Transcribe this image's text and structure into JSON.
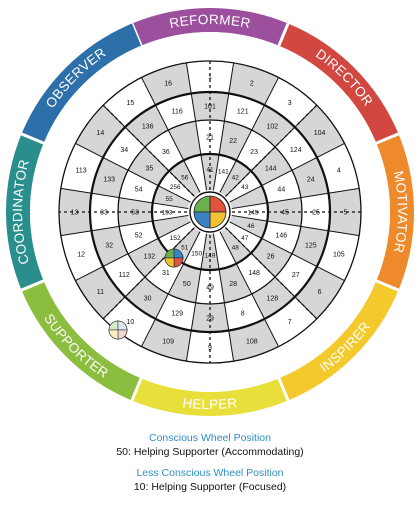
{
  "colors": {
    "reformer": "#9b4f9c",
    "director": "#d2473f",
    "motivator": "#ee8a2c",
    "inspirer": "#f4c92c",
    "helper": "#e8df3a",
    "supporter": "#8bbd3f",
    "coordinator": "#2a8f8c",
    "observer": "#2d6fa8",
    "shaded": "#d6d6d6",
    "line": "#111111",
    "caption_heading": "#2f8fc7",
    "quad_blue": "#3a82c4",
    "quad_green": "#6ab04c",
    "quad_yellow": "#f1c232",
    "quad_red": "#e0533f"
  },
  "ring_labels": [
    {
      "key": "reformer",
      "text": "REFORMER"
    },
    {
      "key": "director",
      "text": "DIRECTOR"
    },
    {
      "key": "motivator",
      "text": "MOTIVATOR"
    },
    {
      "key": "inspirer",
      "text": "INSPIRER"
    },
    {
      "key": "helper",
      "text": "HELPER"
    },
    {
      "key": "supporter",
      "text": "SUPPORTER"
    },
    {
      "key": "coordinator",
      "text": "COORDINATOR"
    },
    {
      "key": "observer",
      "text": "OBSERVER"
    }
  ],
  "segments": [
    {
      "outer": "1",
      "mid": "101",
      "inner": "21",
      "core": "41"
    },
    {
      "outer": "2",
      "mid": "121",
      "inner": "22",
      "core": "141"
    },
    {
      "outer": "3",
      "mid": "102",
      "inner": "23",
      "core": "42"
    },
    {
      "outer": "104",
      "mid": "124",
      "inner": "144",
      "core": "43"
    },
    {
      "outer": "4",
      "mid": "24",
      "inner": "44",
      "core": ""
    },
    {
      "outer": "5",
      "mid": "25",
      "inner": "45",
      "core": "145"
    },
    {
      "outer": "105",
      "mid": "125",
      "inner": "146",
      "core": "46"
    },
    {
      "outer": "6",
      "mid": "27",
      "inner": "26",
      "core": "47"
    },
    {
      "outer": "7",
      "mid": "128",
      "inner": "148",
      "core": "48"
    },
    {
      "outer": "108",
      "mid": "8",
      "inner": "28",
      "core": ""
    },
    {
      "outer": "9",
      "mid": "29",
      "inner": "49",
      "core": "149"
    },
    {
      "outer": "109",
      "mid": "129",
      "inner": "50",
      "core": "150"
    },
    {
      "outer": "10",
      "mid": "30",
      "inner": "31",
      "core": "51"
    },
    {
      "outer": "11",
      "mid": "112",
      "inner": "132",
      "core": "152"
    },
    {
      "outer": "12",
      "mid": "32",
      "inner": "52",
      "core": ""
    },
    {
      "outer": "13",
      "mid": "33",
      "inner": "53",
      "core": "153"
    },
    {
      "outer": "113",
      "mid": "133",
      "inner": "54",
      "core": "55"
    },
    {
      "outer": "14",
      "mid": "34",
      "inner": "35",
      "core": "256"
    },
    {
      "outer": "15",
      "mid": "136",
      "inner": "36",
      "core": "56"
    },
    {
      "outer": "16",
      "mid": "116",
      "inner": "",
      "core": ""
    }
  ],
  "captions": {
    "conscious_heading": "Conscious Wheel Position",
    "conscious_value": "50: Helping Supporter (Accommodating)",
    "less_conscious_heading": "Less Conscious Wheel Position",
    "less_conscious_value": "10: Helping Supporter (Focused)"
  }
}
